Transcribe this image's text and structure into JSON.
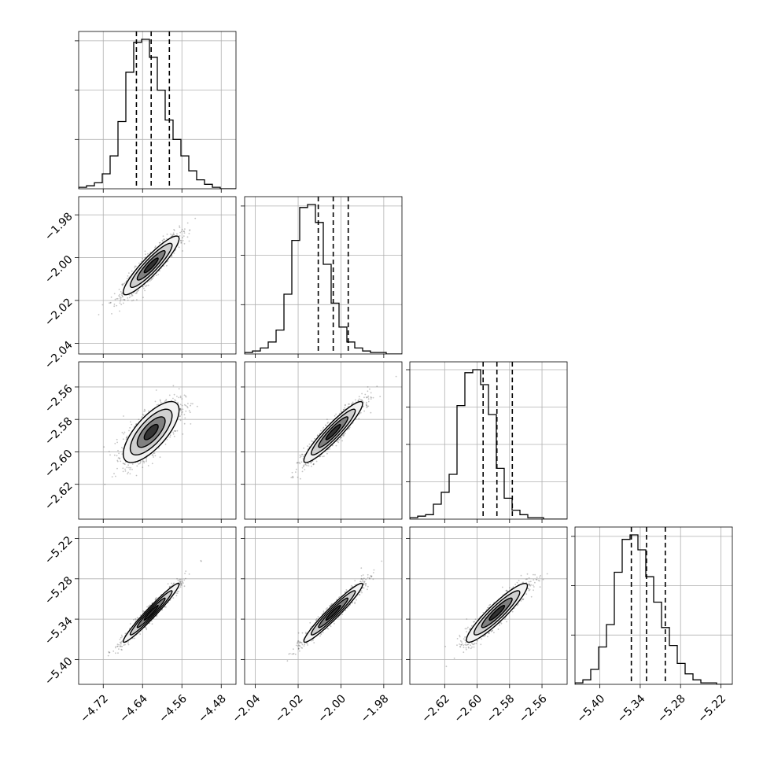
{
  "chart_data": {
    "type": "corner",
    "grid": true,
    "parameters": [
      {
        "id": "p0",
        "range": [
          -4.77,
          -4.45
        ],
        "ticks": [
          -4.72,
          -4.64,
          -4.56,
          -4.48
        ],
        "labels": [
          "−4.72",
          "−4.64",
          "−4.56",
          "−4.48"
        ],
        "mean": -4.6225,
        "sigma": 0.0284,
        "quantiles": [
          -4.6525,
          -4.6225,
          -4.5855
        ]
      },
      {
        "id": "p1",
        "range": [
          -2.045,
          -1.9715
        ],
        "ticks": [
          -2.04,
          -2.02,
          -2.0,
          -1.98
        ],
        "labels": [
          "−2.04",
          "−2.02",
          "−2.00",
          "−1.98"
        ],
        "mean": -2.0036,
        "sigma": 0.00686,
        "quantiles": [
          -2.0106,
          -2.0036,
          -1.9966
        ]
      },
      {
        "id": "p2",
        "range": [
          -2.6415,
          -2.5445
        ],
        "ticks": [
          -2.62,
          -2.6,
          -2.58,
          -2.56
        ],
        "labels": [
          "−2.62",
          "−2.60",
          "−2.58",
          "−2.56"
        ],
        "mean": -2.5878,
        "sigma": 0.0094,
        "quantiles": [
          -2.5963,
          -2.5878,
          -2.5783
        ]
      },
      {
        "id": "p3",
        "range": [
          -5.437,
          -5.203
        ],
        "ticks": [
          -5.4,
          -5.34,
          -5.28,
          -5.22
        ],
        "labels": [
          "−5.40",
          "−5.34",
          "−5.28",
          "−5.22"
        ],
        "mean": -5.3306,
        "sigma": 0.0219,
        "quantiles": [
          -5.3532,
          -5.3306,
          -5.3027
        ]
      }
    ],
    "diagonal_ticks": [
      [
        33,
        66,
        99
      ],
      [
        33,
        66,
        99
      ],
      [
        25,
        50,
        75,
        100
      ],
      [
        33,
        66,
        99
      ]
    ],
    "histograms": [
      [
        1,
        2,
        4,
        10,
        22,
        45,
        78,
        98,
        100,
        88,
        66,
        46,
        33,
        22,
        12,
        6,
        3,
        1,
        0,
        0
      ],
      [
        1,
        2,
        4,
        8,
        16,
        40,
        76,
        98,
        100,
        88,
        60,
        34,
        18,
        8,
        4,
        2,
        1,
        1,
        0,
        0
      ],
      [
        1,
        2,
        3,
        10,
        18,
        30,
        76,
        98,
        100,
        90,
        70,
        34,
        14,
        6,
        3,
        1,
        1,
        0,
        0,
        0
      ],
      [
        1,
        3,
        10,
        25,
        40,
        75,
        97,
        100,
        90,
        72,
        55,
        38,
        26,
        14,
        7,
        3,
        1,
        1,
        0,
        0
      ]
    ],
    "correlations": {
      "1-0": 0.91,
      "2-0": 0.72,
      "2-1": 0.93,
      "3-0": 0.97,
      "3-1": 0.96,
      "3-2": 0.92
    },
    "contour_levels_sigma": [
      0.5,
      1.0,
      1.5,
      2.0
    ],
    "contour_fills": [
      "#333333",
      "#808080",
      "#cfcfcf",
      "#f2f2f2"
    ]
  }
}
